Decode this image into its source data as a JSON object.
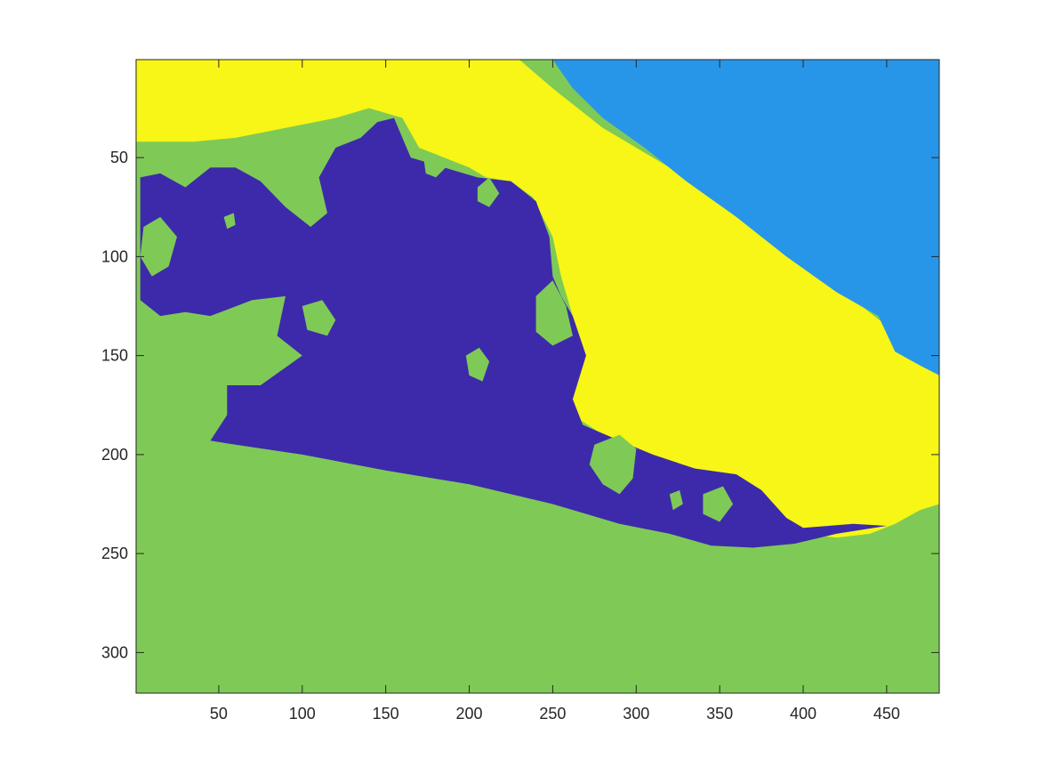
{
  "chart_data": {
    "type": "heatmap",
    "title": "",
    "xlabel": "",
    "ylabel": "",
    "xlim": [
      0.5,
      481.5
    ],
    "ylim": [
      0.5,
      320.5
    ],
    "y_direction": "reverse",
    "grid": false,
    "legend": "none",
    "x_ticks": [
      50,
      100,
      150,
      200,
      250,
      300,
      350,
      400,
      450
    ],
    "x_tick_labels": [
      "50",
      "100",
      "150",
      "200",
      "250",
      "300",
      "350",
      "400",
      "450"
    ],
    "y_ticks": [
      50,
      100,
      150,
      200,
      250,
      300
    ],
    "y_tick_labels": [
      "50",
      "100",
      "150",
      "200",
      "250",
      "300"
    ],
    "classes": [
      {
        "id": 1,
        "color": "#3d2aaa"
      },
      {
        "id": 2,
        "color": "#2896e8"
      },
      {
        "id": 3,
        "color": "#7fca56"
      },
      {
        "id": 4,
        "color": "#f7f616"
      }
    ],
    "regions": [
      {
        "class_id": 3,
        "outline": [
          [
            0.5,
            0.5
          ],
          [
            481.5,
            0.5
          ],
          [
            481.5,
            320.5
          ],
          [
            0.5,
            320.5
          ]
        ]
      },
      {
        "class_id": 4,
        "outline": [
          [
            0.5,
            0.5
          ],
          [
            230,
            0.5
          ],
          [
            250,
            15
          ],
          [
            280,
            35
          ],
          [
            320,
            55
          ],
          [
            360,
            75
          ],
          [
            390,
            95
          ],
          [
            420,
            115
          ],
          [
            450,
            135
          ],
          [
            481.5,
            155
          ],
          [
            481.5,
            225
          ],
          [
            470,
            228
          ],
          [
            455,
            235
          ],
          [
            440,
            240
          ],
          [
            420,
            242
          ],
          [
            400,
            240
          ],
          [
            390,
            232
          ],
          [
            375,
            220
          ],
          [
            355,
            212
          ],
          [
            330,
            207
          ],
          [
            300,
            200
          ],
          [
            280,
            190
          ],
          [
            262,
            180
          ],
          [
            258,
            175
          ],
          [
            270,
            150
          ],
          [
            262,
            130
          ],
          [
            255,
            110
          ],
          [
            250,
            90
          ],
          [
            238,
            70
          ],
          [
            225,
            62
          ],
          [
            210,
            60
          ],
          [
            200,
            55
          ],
          [
            185,
            50
          ],
          [
            170,
            45
          ],
          [
            160,
            30
          ],
          [
            140,
            25
          ],
          [
            120,
            30
          ],
          [
            90,
            35
          ],
          [
            60,
            40
          ],
          [
            35,
            42
          ],
          [
            0.5,
            42
          ]
        ]
      },
      {
        "class_id": 2,
        "outline": [
          [
            250,
            0.5
          ],
          [
            481.5,
            0.5
          ],
          [
            481.5,
            160
          ],
          [
            470,
            155
          ],
          [
            455,
            148
          ],
          [
            445,
            130
          ],
          [
            420,
            118
          ],
          [
            390,
            100
          ],
          [
            360,
            80
          ],
          [
            330,
            62
          ],
          [
            305,
            45
          ],
          [
            280,
            30
          ],
          [
            262,
            15
          ]
        ]
      },
      {
        "class_id": 1,
        "outline": [
          [
            155,
            30
          ],
          [
            165,
            50
          ],
          [
            185,
            55
          ],
          [
            205,
            60
          ],
          [
            225,
            62
          ],
          [
            240,
            72
          ],
          [
            248,
            90
          ],
          [
            250,
            110
          ],
          [
            255,
            120
          ],
          [
            262,
            130
          ],
          [
            270,
            150
          ],
          [
            262,
            172
          ],
          [
            268,
            185
          ],
          [
            290,
            193
          ],
          [
            310,
            200
          ],
          [
            335,
            207
          ],
          [
            360,
            210
          ],
          [
            375,
            218
          ],
          [
            390,
            232
          ],
          [
            400,
            237
          ],
          [
            430,
            235
          ],
          [
            450,
            236
          ],
          [
            420,
            240
          ],
          [
            395,
            245
          ],
          [
            370,
            247
          ],
          [
            345,
            246
          ],
          [
            320,
            240
          ],
          [
            290,
            235
          ],
          [
            250,
            225
          ],
          [
            200,
            215
          ],
          [
            150,
            208
          ],
          [
            100,
            200
          ],
          [
            60,
            195
          ],
          [
            45,
            193
          ],
          [
            55,
            180
          ],
          [
            55,
            165
          ],
          [
            75,
            165
          ],
          [
            100,
            150
          ],
          [
            85,
            140
          ],
          [
            90,
            120
          ],
          [
            70,
            122
          ],
          [
            45,
            130
          ],
          [
            30,
            128
          ],
          [
            15,
            130
          ],
          [
            3,
            122
          ],
          [
            3,
            60
          ],
          [
            15,
            58
          ],
          [
            30,
            65
          ],
          [
            45,
            55
          ],
          [
            60,
            55
          ],
          [
            75,
            62
          ],
          [
            90,
            75
          ],
          [
            105,
            85
          ],
          [
            115,
            78
          ],
          [
            110,
            60
          ],
          [
            120,
            45
          ],
          [
            135,
            40
          ],
          [
            145,
            32
          ]
        ]
      },
      {
        "class_id": 3,
        "outline": [
          [
            5,
            85
          ],
          [
            15,
            80
          ],
          [
            25,
            90
          ],
          [
            20,
            105
          ],
          [
            10,
            110
          ],
          [
            3,
            100
          ]
        ]
      },
      {
        "class_id": 3,
        "outline": [
          [
            100,
            125
          ],
          [
            112,
            122
          ],
          [
            120,
            132
          ],
          [
            115,
            140
          ],
          [
            103,
            137
          ]
        ]
      },
      {
        "class_id": 3,
        "outline": [
          [
            198,
            150
          ],
          [
            206,
            146
          ],
          [
            212,
            153
          ],
          [
            208,
            163
          ],
          [
            200,
            160
          ]
        ]
      },
      {
        "class_id": 3,
        "outline": [
          [
            240,
            120
          ],
          [
            250,
            112
          ],
          [
            258,
            125
          ],
          [
            262,
            140
          ],
          [
            250,
            145
          ],
          [
            240,
            138
          ]
        ]
      },
      {
        "class_id": 3,
        "outline": [
          [
            275,
            195
          ],
          [
            290,
            190
          ],
          [
            300,
            197
          ],
          [
            298,
            212
          ],
          [
            290,
            220
          ],
          [
            280,
            215
          ],
          [
            272,
            205
          ]
        ]
      },
      {
        "class_id": 3,
        "outline": [
          [
            340,
            220
          ],
          [
            352,
            216
          ],
          [
            358,
            225
          ],
          [
            350,
            234
          ],
          [
            340,
            230
          ]
        ]
      },
      {
        "class_id": 3,
        "outline": [
          [
            205,
            65
          ],
          [
            212,
            60
          ],
          [
            218,
            68
          ],
          [
            212,
            75
          ],
          [
            205,
            72
          ]
        ]
      },
      {
        "class_id": 3,
        "outline": [
          [
            173,
            52
          ],
          [
            180,
            48
          ],
          [
            186,
            55
          ],
          [
            180,
            60
          ],
          [
            174,
            58
          ]
        ]
      },
      {
        "class_id": 3,
        "outline": [
          [
            53,
            80
          ],
          [
            59,
            78
          ],
          [
            60,
            84
          ],
          [
            55,
            86
          ]
        ]
      },
      {
        "class_id": 3,
        "outline": [
          [
            320,
            220
          ],
          [
            326,
            218
          ],
          [
            328,
            225
          ],
          [
            322,
            228
          ]
        ]
      }
    ]
  }
}
